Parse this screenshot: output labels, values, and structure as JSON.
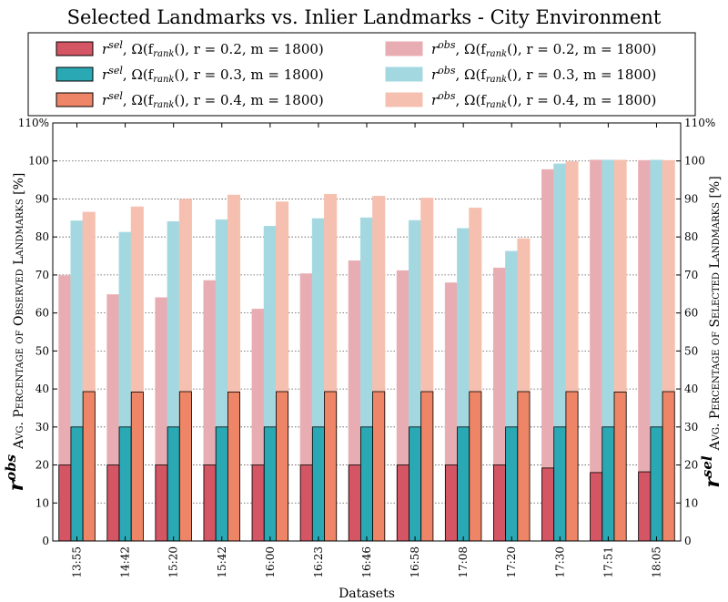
{
  "chart_data": {
    "type": "bar",
    "title": "Selected Landmarks vs. Inlier Landmarks - City Environment",
    "xlabel": "Datasets",
    "ylabel_left": "r^obs Avg. Percentage of Observed Landmarks [%]",
    "ylabel_left_parts": {
      "symbol": "r",
      "sup": "obs",
      "text": "Avg. Percentage of Observed Landmarks [%]"
    },
    "ylabel_right": "r^sel Avg. Percentage of Selected Landmarks [%]",
    "ylabel_right_parts": {
      "symbol": "r",
      "sup": "sel",
      "text": "Avg. Percentage of Selected Landmarks [%]"
    },
    "ylim": [
      0,
      110
    ],
    "yticks": [
      0,
      10,
      20,
      30,
      40,
      50,
      60,
      70,
      80,
      90,
      100,
      110
    ],
    "ytick_labels": [
      "0",
      "10",
      "20",
      "30",
      "40",
      "50",
      "60",
      "70",
      "80",
      "90",
      "100",
      "110%"
    ],
    "grid": "horizontal dotted",
    "legend_position": "top",
    "categories": [
      "13:55",
      "14:42",
      "15:20",
      "15:42",
      "16:00",
      "16:23",
      "16:46",
      "16:58",
      "17:08",
      "17:20",
      "17:30",
      "17:51",
      "18:05"
    ],
    "series": [
      {
        "name": "r^sel, Ω(f_rank(), r = 0.2, m = 1800)",
        "kind": "sel",
        "color": "#d45563",
        "group": 0,
        "values": [
          20,
          20,
          20,
          20,
          20,
          20,
          20,
          20,
          20,
          20,
          19.2,
          18,
          18.2
        ]
      },
      {
        "name": "r^sel, Ω(f_rank(), r = 0.3, m = 1800)",
        "kind": "sel",
        "color": "#2aa9b5",
        "group": 1,
        "values": [
          30,
          30,
          30,
          30,
          30,
          30,
          30,
          30,
          30,
          30,
          30,
          30,
          30
        ]
      },
      {
        "name": "r^sel, Ω(f_rank(), r = 0.4, m = 1800)",
        "kind": "sel",
        "color": "#ee8566",
        "group": 2,
        "values": [
          39.3,
          39.2,
          39.3,
          39.2,
          39.3,
          39.3,
          39.3,
          39.3,
          39.3,
          39.3,
          39.3,
          39.2,
          39.3
        ]
      },
      {
        "name": "r^obs, Ω(f_rank(), r = 0.2, m = 1800)",
        "kind": "obs",
        "color": "#e8adb2",
        "group": 0,
        "values": [
          69.8,
          64.8,
          64,
          68.5,
          61,
          70.3,
          73.7,
          71.1,
          67.9,
          71.8,
          97.7,
          100.2,
          100.1
        ]
      },
      {
        "name": "r^obs, Ω(f_rank(), r = 0.3, m = 1800)",
        "kind": "obs",
        "color": "#a4d8e1",
        "group": 1,
        "values": [
          84.2,
          81.2,
          84,
          84.5,
          82.8,
          84.8,
          85,
          84.3,
          82.2,
          76.2,
          99.2,
          100.2,
          100.2
        ]
      },
      {
        "name": "r^obs, Ω(f_rank(), r = 0.4, m = 1800)",
        "kind": "obs",
        "color": "#f5c0b0",
        "group": 2,
        "values": [
          86.5,
          87.9,
          89.9,
          91,
          89.2,
          91.2,
          90.7,
          90.2,
          87.6,
          79.5,
          99.8,
          100.2,
          100.1
        ]
      }
    ],
    "legend_entries": [
      {
        "series": 0,
        "label": {
          "sym": "r",
          "sup": "sel",
          "rest": ", Ω(f",
          "sub": "rank",
          "tail": "(), r = 0.2, m = 1800)"
        }
      },
      {
        "series": 3,
        "label": {
          "sym": "r",
          "sup": "obs",
          "rest": ", Ω(f",
          "sub": "rank",
          "tail": "(), r = 0.2, m = 1800)"
        }
      },
      {
        "series": 1,
        "label": {
          "sym": "r",
          "sup": "sel",
          "rest": ", Ω(f",
          "sub": "rank",
          "tail": "(), r = 0.3, m = 1800)"
        }
      },
      {
        "series": 4,
        "label": {
          "sym": "r",
          "sup": "obs",
          "rest": ", Ω(f",
          "sub": "rank",
          "tail": "(), r = 0.3, m = 1800)"
        }
      },
      {
        "series": 2,
        "label": {
          "sym": "r",
          "sup": "sel",
          "rest": ", Ω(f",
          "sub": "rank",
          "tail": "(), r = 0.4, m = 1800)"
        }
      },
      {
        "series": 5,
        "label": {
          "sym": "r",
          "sup": "obs",
          "rest": ", Ω(f",
          "sub": "rank",
          "tail": "(), r = 0.4, m = 1800)"
        }
      }
    ]
  }
}
